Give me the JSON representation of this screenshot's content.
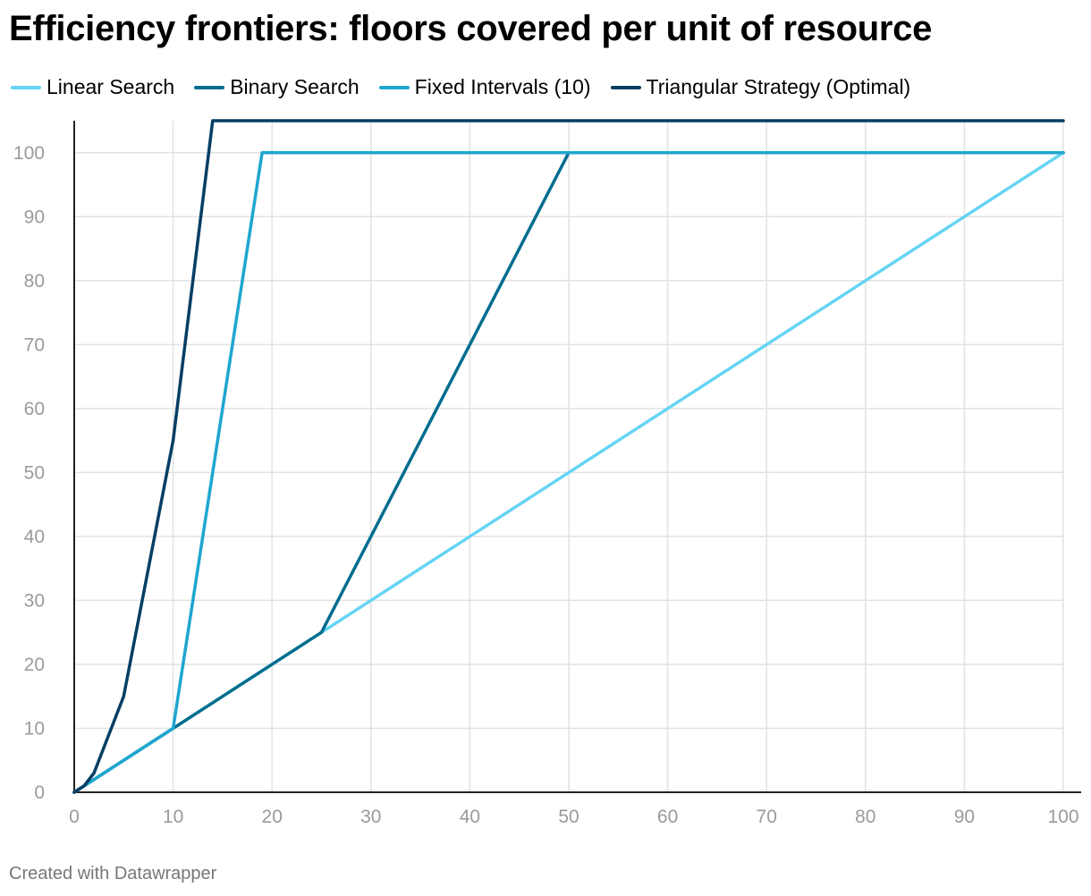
{
  "title": "Efficiency frontiers: floors covered per unit of resource",
  "footer": "Created with Datawrapper",
  "chart_data": {
    "type": "line",
    "title": "Efficiency frontiers: floors covered per unit of resource",
    "xlabel": "",
    "ylabel": "",
    "xlim": [
      0,
      100
    ],
    "ylim": [
      0,
      105
    ],
    "x_ticks": [
      0,
      10,
      20,
      30,
      40,
      50,
      60,
      70,
      80,
      90,
      100
    ],
    "y_ticks": [
      0,
      10,
      20,
      30,
      40,
      50,
      60,
      70,
      80,
      90,
      100
    ],
    "grid": true,
    "legend_position": "top-left",
    "series": [
      {
        "name": "Linear Search",
        "color": "#66d4f5",
        "points": [
          [
            0,
            0
          ],
          [
            100,
            100
          ]
        ]
      },
      {
        "name": "Binary Search",
        "color": "#006d8f",
        "points": [
          [
            0,
            0
          ],
          [
            25,
            25
          ],
          [
            50,
            100
          ],
          [
            100,
            100
          ]
        ]
      },
      {
        "name": "Fixed Intervals (10)",
        "color": "#1fa6cf",
        "points": [
          [
            0,
            0
          ],
          [
            10,
            10
          ],
          [
            19,
            100
          ],
          [
            100,
            100
          ]
        ]
      },
      {
        "name": "Triangular Strategy (Optimal)",
        "color": "#053e63",
        "points": [
          [
            0,
            0
          ],
          [
            1,
            1
          ],
          [
            2,
            3
          ],
          [
            5,
            15
          ],
          [
            10,
            55
          ],
          [
            14,
            105
          ],
          [
            100,
            105
          ]
        ]
      }
    ]
  }
}
